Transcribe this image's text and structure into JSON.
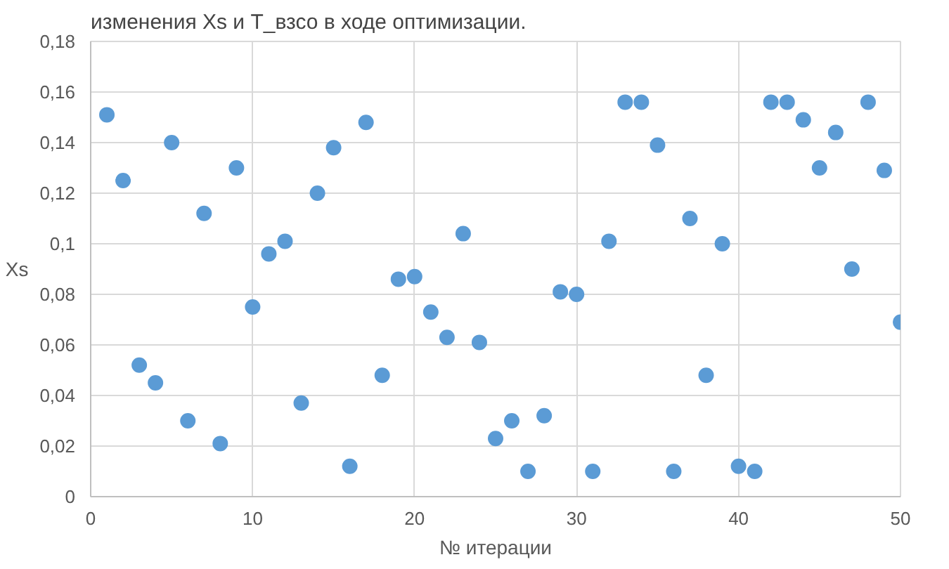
{
  "chart_data": {
    "type": "scatter",
    "title": "изменения Xs и T_взсо в ходе оптимизации.",
    "xlabel": "№ итерации",
    "ylabel": "Xs",
    "x": [
      1,
      2,
      3,
      4,
      5,
      6,
      7,
      8,
      9,
      10,
      11,
      12,
      13,
      14,
      15,
      16,
      17,
      18,
      19,
      20,
      21,
      22,
      23,
      24,
      25,
      26,
      27,
      28,
      29,
      30,
      31,
      32,
      33,
      34,
      35,
      36,
      37,
      38,
      39,
      40,
      41,
      42,
      43,
      44,
      45,
      46,
      47,
      48,
      49,
      50
    ],
    "series": [
      {
        "color": "#5b9bd5",
        "values": [
          0.151,
          0.125,
          0.052,
          0.045,
          0.14,
          0.03,
          0.112,
          0.021,
          0.13,
          0.075,
          0.096,
          0.101,
          0.037,
          0.12,
          0.138,
          0.012,
          0.148,
          0.048,
          0.086,
          0.087,
          0.073,
          0.063,
          0.104,
          0.061,
          0.023,
          0.03,
          0.01,
          0.032,
          0.081,
          0.08,
          0.01,
          0.101,
          0.156,
          0.156,
          0.139,
          0.01,
          0.11,
          0.048,
          0.1,
          0.012,
          0.01,
          0.156,
          0.156,
          0.149,
          0.13,
          0.144,
          0.09,
          0.156,
          0.129,
          0.069
        ]
      }
    ],
    "xlim": [
      0,
      50
    ],
    "xticks": [
      0,
      10,
      20,
      30,
      40,
      50
    ],
    "ylim": [
      0,
      0.18
    ],
    "yticks": [
      0,
      {
        "value": 0.02,
        "label": "0,02"
      },
      {
        "value": 0.04,
        "label": "0,04"
      },
      {
        "value": 0.06,
        "label": "0,06"
      },
      {
        "value": 0.08,
        "label": "0,08"
      },
      {
        "value": 0.1,
        "label": "0,1"
      },
      {
        "value": 0.12,
        "label": "0,12"
      },
      {
        "value": 0.14,
        "label": "0,14"
      },
      {
        "value": 0.16,
        "label": "0,16"
      },
      {
        "value": 0.18,
        "label": "0,18"
      }
    ],
    "grid": true,
    "marker": "circle"
  }
}
